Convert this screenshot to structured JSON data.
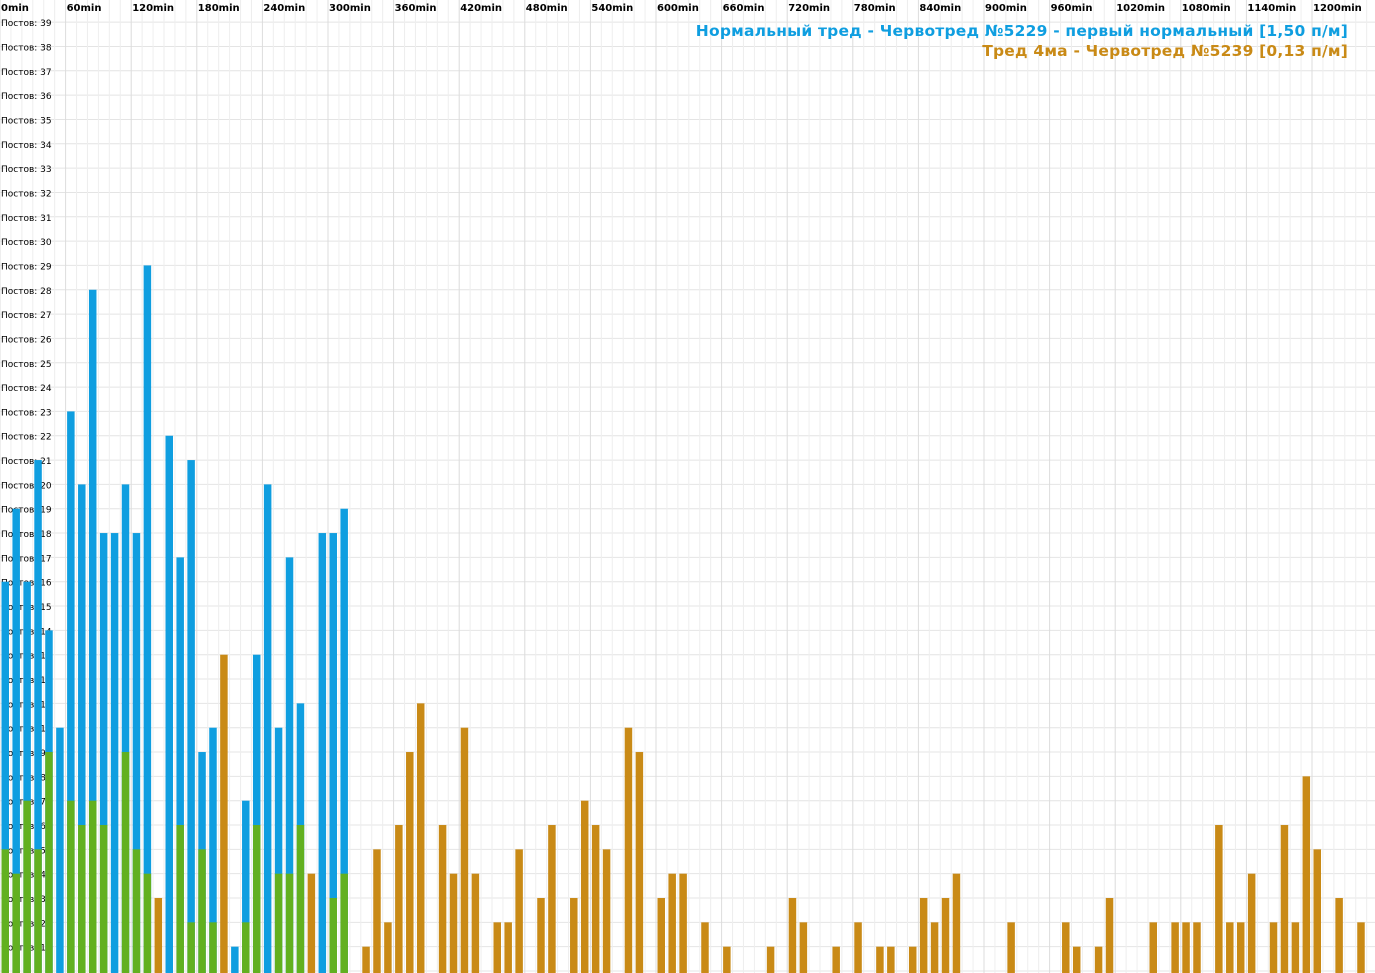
{
  "chart_data": {
    "type": "bar",
    "x_unit": "min",
    "x_ticks": [
      "0min",
      "60min",
      "120min",
      "180min",
      "240min",
      "300min",
      "360min",
      "420min",
      "480min",
      "540min",
      "600min",
      "660min",
      "720min",
      "780min",
      "840min",
      "900min",
      "960min",
      "1020min",
      "1080min",
      "1140min",
      "1200min"
    ],
    "y_tick_prefix": "Постов:",
    "y_ticks": [
      1,
      2,
      3,
      4,
      5,
      6,
      7,
      8,
      9,
      10,
      11,
      12,
      13,
      14,
      15,
      16,
      17,
      18,
      19,
      20,
      21,
      22,
      23,
      24,
      25,
      26,
      27,
      28,
      29,
      30,
      31,
      32,
      33,
      34,
      35,
      36,
      37,
      38,
      39
    ],
    "ylim": [
      0,
      40
    ],
    "xlim": [
      0,
      1250
    ],
    "bin_minutes": 10,
    "grid": true,
    "legend_placement": "top-right",
    "series": [
      {
        "name": "Нормальный тред - Червотред №5229 - первый нормальный [1,50 п/м]",
        "color": "#0f9ee0",
        "points": [
          [
            0,
            16
          ],
          [
            10,
            19
          ],
          [
            20,
            16
          ],
          [
            30,
            21
          ],
          [
            40,
            14
          ],
          [
            50,
            10
          ],
          [
            60,
            23
          ],
          [
            70,
            20
          ],
          [
            80,
            28
          ],
          [
            90,
            18
          ],
          [
            100,
            18
          ],
          [
            110,
            20
          ],
          [
            120,
            18
          ],
          [
            130,
            29
          ],
          [
            150,
            22
          ],
          [
            160,
            17
          ],
          [
            170,
            21
          ],
          [
            180,
            9
          ],
          [
            190,
            10
          ],
          [
            210,
            1
          ],
          [
            220,
            7
          ],
          [
            230,
            13
          ],
          [
            240,
            20
          ],
          [
            250,
            10
          ],
          [
            260,
            17
          ],
          [
            270,
            11
          ],
          [
            290,
            18
          ],
          [
            300,
            18
          ],
          [
            310,
            19
          ]
        ]
      },
      {
        "name": "Тред 4ма - Червотред №5239 [0,13 п/м]",
        "color": "#c98a16",
        "points": [
          [
            0,
            5
          ],
          [
            10,
            4
          ],
          [
            20,
            7
          ],
          [
            30,
            5
          ],
          [
            40,
            9
          ],
          [
            60,
            7
          ],
          [
            70,
            6
          ],
          [
            80,
            7
          ],
          [
            90,
            6
          ],
          [
            110,
            9
          ],
          [
            120,
            5
          ],
          [
            130,
            4
          ],
          [
            140,
            3
          ],
          [
            160,
            6
          ],
          [
            170,
            2
          ],
          [
            180,
            5
          ],
          [
            190,
            2
          ],
          [
            200,
            13
          ],
          [
            220,
            2
          ],
          [
            230,
            6
          ],
          [
            250,
            4
          ],
          [
            260,
            4
          ],
          [
            270,
            6
          ],
          [
            280,
            4
          ],
          [
            300,
            3
          ],
          [
            310,
            4
          ],
          [
            330,
            1
          ],
          [
            340,
            5
          ],
          [
            350,
            2
          ],
          [
            360,
            6
          ],
          [
            370,
            9
          ],
          [
            380,
            11
          ],
          [
            400,
            6
          ],
          [
            410,
            4
          ],
          [
            420,
            10
          ],
          [
            430,
            4
          ],
          [
            450,
            2
          ],
          [
            460,
            2
          ],
          [
            470,
            5
          ],
          [
            490,
            3
          ],
          [
            500,
            6
          ],
          [
            520,
            3
          ],
          [
            530,
            7
          ],
          [
            540,
            6
          ],
          [
            550,
            5
          ],
          [
            570,
            10
          ],
          [
            580,
            9
          ],
          [
            600,
            3
          ],
          [
            610,
            4
          ],
          [
            620,
            4
          ],
          [
            640,
            2
          ],
          [
            660,
            1
          ],
          [
            700,
            1
          ],
          [
            720,
            3
          ],
          [
            730,
            2
          ],
          [
            760,
            1
          ],
          [
            780,
            2
          ],
          [
            800,
            1
          ],
          [
            810,
            1
          ],
          [
            830,
            1
          ],
          [
            840,
            3
          ],
          [
            850,
            2
          ],
          [
            860,
            3
          ],
          [
            870,
            4
          ],
          [
            920,
            2
          ],
          [
            970,
            2
          ],
          [
            980,
            1
          ],
          [
            1000,
            1
          ],
          [
            1010,
            3
          ],
          [
            1050,
            2
          ],
          [
            1070,
            2
          ],
          [
            1080,
            2
          ],
          [
            1090,
            2
          ],
          [
            1110,
            6
          ],
          [
            1120,
            2
          ],
          [
            1130,
            2
          ],
          [
            1140,
            4
          ],
          [
            1160,
            2
          ],
          [
            1170,
            6
          ],
          [
            1180,
            2
          ],
          [
            1190,
            8
          ],
          [
            1200,
            5
          ],
          [
            1220,
            3
          ],
          [
            1240,
            2
          ]
        ]
      }
    ],
    "overlap_color": "#62b020"
  }
}
